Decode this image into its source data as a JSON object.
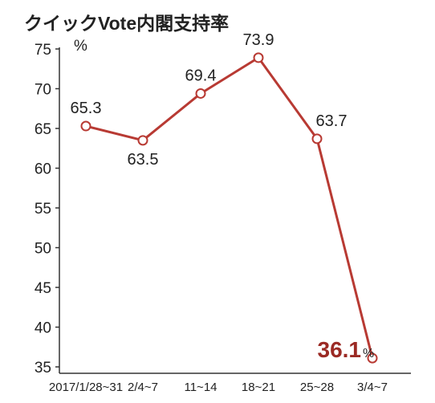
{
  "chart_data": {
    "type": "line",
    "title": "クイックVote内閣支持率",
    "unit": "%",
    "categories": [
      "2017/1/28~31",
      "2/4~7",
      "11~14",
      "18~21",
      "25~28",
      "3/4~7"
    ],
    "values": [
      65.3,
      63.5,
      69.4,
      73.9,
      63.7,
      36.1
    ],
    "value_labels": [
      "65.3",
      "63.5",
      "69.4",
      "73.9",
      "63.7",
      "36.1"
    ],
    "highlight_suffix": "%",
    "ylim": [
      35,
      75
    ],
    "yticks": [
      35,
      40,
      45,
      50,
      55,
      60,
      65,
      70,
      75
    ],
    "grid": false,
    "line_color": "#b83a33"
  }
}
